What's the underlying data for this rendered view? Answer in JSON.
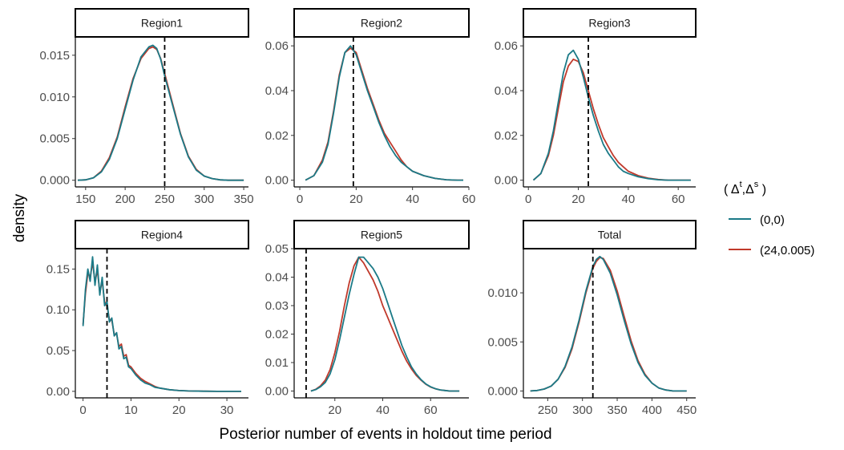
{
  "chart_data": {
    "type": "line",
    "subtype": "faceted-density",
    "xlabel": "Posterior number of events in holdout time period",
    "ylabel": "density",
    "legend": {
      "title_prefix": "( Δ",
      "title_sup1": "t",
      "title_mid": ",Δ",
      "title_sup2": "s",
      "title_suffix": " )",
      "position": "right",
      "entries": [
        {
          "name": "(0,0)",
          "color": "#1b7a87"
        },
        {
          "name": "(24,0.005)",
          "color": "#c0392b"
        }
      ]
    },
    "panels": [
      {
        "name": "Region1",
        "xlim": [
          137,
          356
        ],
        "ylim": [
          -0.0008,
          0.0172
        ],
        "xticks": [
          150,
          200,
          250,
          300,
          350
        ],
        "yticks": [
          0.0,
          0.005,
          0.01,
          0.015
        ],
        "ytick_labels": [
          "0.000",
          "0.005",
          "0.010",
          "0.015"
        ],
        "vline": 250,
        "series": [
          {
            "name": "(0,0)",
            "x": [
              140,
              150,
              160,
              170,
              180,
              190,
              200,
              210,
              220,
              230,
              235,
              240,
              245,
              250,
              260,
              270,
              280,
              290,
              300,
              310,
              320,
              330,
              340,
              350
            ],
            "y": [
              0.0,
              5e-05,
              0.0003,
              0.001,
              0.0025,
              0.005,
              0.0085,
              0.012,
              0.0148,
              0.016,
              0.0162,
              0.0158,
              0.0145,
              0.0125,
              0.009,
              0.0055,
              0.0028,
              0.0012,
              0.0005,
              0.0002,
              5e-05,
              0.0,
              0.0,
              0.0
            ]
          },
          {
            "name": "(24,0.005)",
            "x": [
              140,
              150,
              160,
              170,
              180,
              190,
              200,
              210,
              220,
              230,
              235,
              240,
              245,
              250,
              260,
              270,
              280,
              290,
              300,
              310,
              320,
              330,
              340,
              350
            ],
            "y": [
              0.0,
              5e-05,
              0.0003,
              0.0011,
              0.0027,
              0.0052,
              0.0088,
              0.0122,
              0.0146,
              0.0158,
              0.016,
              0.0157,
              0.0146,
              0.0128,
              0.0092,
              0.0056,
              0.0029,
              0.0013,
              0.0005,
              0.0002,
              5e-05,
              0.0,
              0.0,
              0.0
            ]
          }
        ]
      },
      {
        "name": "Region2",
        "xlim": [
          -2,
          60
        ],
        "ylim": [
          -0.003,
          0.064
        ],
        "xticks": [
          0,
          20,
          40,
          60
        ],
        "yticks": [
          0.0,
          0.02,
          0.04,
          0.06
        ],
        "ytick_labels": [
          "0.00",
          "0.02",
          "0.04",
          "0.06"
        ],
        "vline": 19,
        "series": [
          {
            "name": "(0,0)",
            "x": [
              2,
              5,
              8,
              10,
              12,
              14,
              16,
              18,
              20,
              22,
              24,
              26,
              28,
              30,
              32,
              34,
              36,
              38,
              40,
              44,
              48,
              52,
              56,
              58
            ],
            "y": [
              0.0,
              0.002,
              0.008,
              0.016,
              0.03,
              0.046,
              0.057,
              0.06,
              0.056,
              0.048,
              0.04,
              0.033,
              0.026,
              0.02,
              0.015,
              0.011,
              0.008,
              0.006,
              0.004,
              0.002,
              0.0008,
              0.0002,
              0.0,
              0.0
            ]
          },
          {
            "name": "(24,0.005)",
            "x": [
              2,
              5,
              8,
              10,
              12,
              14,
              16,
              18,
              20,
              22,
              24,
              26,
              28,
              30,
              32,
              34,
              36,
              38,
              40,
              44,
              48,
              52,
              56,
              58
            ],
            "y": [
              0.0,
              0.002,
              0.009,
              0.017,
              0.031,
              0.047,
              0.057,
              0.059,
              0.057,
              0.049,
              0.041,
              0.034,
              0.027,
              0.021,
              0.017,
              0.013,
              0.009,
              0.006,
              0.004,
              0.002,
              0.0008,
              0.0002,
              0.0,
              0.0
            ]
          }
        ]
      },
      {
        "name": "Region3",
        "xlim": [
          -2,
          67
        ],
        "ylim": [
          -0.003,
          0.064
        ],
        "xticks": [
          0,
          20,
          40,
          60
        ],
        "yticks": [
          0.0,
          0.02,
          0.04,
          0.06
        ],
        "ytick_labels": [
          "0.00",
          "0.02",
          "0.04",
          "0.06"
        ],
        "vline": 24,
        "series": [
          {
            "name": "(0,0)",
            "x": [
              2,
              5,
              8,
              10,
              12,
              14,
              16,
              18,
              20,
              22,
              24,
              26,
              28,
              30,
              32,
              34,
              36,
              38,
              40,
              44,
              48,
              52,
              56,
              60,
              65
            ],
            "y": [
              0.0,
              0.003,
              0.012,
              0.022,
              0.035,
              0.048,
              0.056,
              0.058,
              0.054,
              0.046,
              0.037,
              0.029,
              0.022,
              0.016,
              0.012,
              0.009,
              0.006,
              0.004,
              0.003,
              0.0015,
              0.0007,
              0.0002,
              0.0,
              0.0,
              0.0
            ]
          },
          {
            "name": "(24,0.005)",
            "x": [
              2,
              5,
              8,
              10,
              12,
              14,
              16,
              18,
              20,
              22,
              24,
              26,
              28,
              30,
              32,
              34,
              36,
              38,
              40,
              44,
              48,
              52,
              56,
              60,
              65
            ],
            "y": [
              0.0,
              0.003,
              0.011,
              0.02,
              0.032,
              0.044,
              0.051,
              0.054,
              0.053,
              0.048,
              0.04,
              0.032,
              0.025,
              0.019,
              0.015,
              0.011,
              0.008,
              0.006,
              0.004,
              0.002,
              0.0009,
              0.0003,
              0.0,
              0.0,
              0.0
            ]
          }
        ]
      },
      {
        "name": "Region4",
        "xlim": [
          -1.6,
          34.5
        ],
        "ylim": [
          -0.008,
          0.175
        ],
        "xticks": [
          0,
          10,
          20,
          30
        ],
        "yticks": [
          0.0,
          0.05,
          0.1,
          0.15
        ],
        "ytick_labels": [
          "0.00",
          "0.05",
          "0.10",
          "0.15"
        ],
        "vline": 5,
        "series": [
          {
            "name": "(0,0)",
            "x": [
              0,
              0.5,
              1,
              1.5,
              2,
              2.5,
              3,
              3.5,
              4,
              4.5,
              5,
              5.5,
              6,
              6.5,
              7,
              7.5,
              8,
              8.5,
              9,
              9.5,
              10,
              11,
              12,
              13,
              14,
              15,
              16,
              17,
              18,
              20,
              22,
              25,
              28,
              30,
              32,
              33
            ],
            "y": [
              0.08,
              0.125,
              0.15,
              0.135,
              0.165,
              0.13,
              0.155,
              0.118,
              0.14,
              0.105,
              0.11,
              0.085,
              0.09,
              0.068,
              0.072,
              0.052,
              0.055,
              0.04,
              0.042,
              0.03,
              0.028,
              0.02,
              0.014,
              0.01,
              0.008,
              0.005,
              0.004,
              0.003,
              0.002,
              0.001,
              0.0005,
              0.0002,
              0.0,
              0.0,
              0.0,
              0.0
            ]
          },
          {
            "name": "(24,0.005)",
            "x": [
              0,
              0.5,
              1,
              1.5,
              2,
              2.5,
              3,
              3.5,
              4,
              4.5,
              5,
              5.5,
              6,
              6.5,
              7,
              7.5,
              8,
              8.5,
              9,
              9.5,
              10,
              11,
              12,
              13,
              14,
              15,
              16,
              17,
              18,
              20,
              22,
              25,
              28,
              30,
              32,
              33
            ],
            "y": [
              0.082,
              0.12,
              0.145,
              0.14,
              0.158,
              0.135,
              0.148,
              0.122,
              0.135,
              0.11,
              0.105,
              0.088,
              0.087,
              0.07,
              0.07,
              0.055,
              0.058,
              0.043,
              0.045,
              0.032,
              0.03,
              0.022,
              0.016,
              0.012,
              0.009,
              0.006,
              0.004,
              0.003,
              0.002,
              0.001,
              0.0005,
              0.0002,
              0.0,
              0.0,
              0.0,
              0.0
            ]
          }
        ]
      },
      {
        "name": "Region5",
        "xlim": [
          3,
          76
        ],
        "ylim": [
          -0.0024,
          0.05
        ],
        "xticks": [
          20,
          40,
          60
        ],
        "yticks": [
          0.0,
          0.01,
          0.02,
          0.03,
          0.04,
          0.05
        ],
        "ytick_labels": [
          "0.00",
          "0.01",
          "0.02",
          "0.03",
          "0.04",
          "0.05"
        ],
        "vline": 8,
        "series": [
          {
            "name": "(0,0)",
            "x": [
              10,
              12,
              14,
              16,
              18,
              20,
              22,
              24,
              26,
              28,
              30,
              32,
              34,
              36,
              38,
              40,
              42,
              44,
              46,
              48,
              50,
              52,
              54,
              56,
              58,
              60,
              62,
              64,
              66,
              68,
              70,
              72
            ],
            "y": [
              0.0,
              0.0005,
              0.0015,
              0.003,
              0.006,
              0.011,
              0.018,
              0.026,
              0.034,
              0.041,
              0.047,
              0.047,
              0.045,
              0.043,
              0.04,
              0.036,
              0.031,
              0.026,
              0.021,
              0.016,
              0.012,
              0.0085,
              0.006,
              0.004,
              0.0025,
              0.0015,
              0.0008,
              0.0004,
              0.0002,
              0.0,
              0.0,
              0.0
            ]
          },
          {
            "name": "(24,0.005)",
            "x": [
              10,
              12,
              14,
              16,
              18,
              20,
              22,
              24,
              26,
              28,
              30,
              32,
              34,
              36,
              38,
              40,
              42,
              44,
              46,
              48,
              50,
              52,
              54,
              56,
              58,
              60,
              62,
              64,
              66,
              68,
              70,
              72
            ],
            "y": [
              0.0,
              0.0006,
              0.0018,
              0.0038,
              0.0075,
              0.0135,
              0.021,
              0.03,
              0.038,
              0.044,
              0.047,
              0.045,
              0.042,
              0.039,
              0.035,
              0.03,
              0.026,
              0.022,
              0.018,
              0.014,
              0.0105,
              0.0078,
              0.0055,
              0.0038,
              0.0024,
              0.0014,
              0.0008,
              0.0004,
              0.0002,
              0.0,
              0.0,
              0.0
            ]
          }
        ]
      },
      {
        "name": "Total",
        "xlim": [
          215,
          463
        ],
        "ylim": [
          -0.0007,
          0.0145
        ],
        "xticks": [
          250,
          300,
          350,
          400,
          450
        ],
        "yticks": [
          0.0,
          0.005,
          0.01
        ],
        "ytick_labels": [
          "0.000",
          "0.005",
          "0.010"
        ],
        "vline": 315,
        "series": [
          {
            "name": "(0,0)",
            "x": [
              225,
              235,
              245,
              255,
              265,
              275,
              285,
              295,
              305,
              315,
              320,
              325,
              330,
              340,
              350,
              360,
              370,
              380,
              390,
              400,
              410,
              420,
              430,
              440,
              450
            ],
            "y": [
              0.0,
              5e-05,
              0.0002,
              0.0005,
              0.0012,
              0.0025,
              0.0045,
              0.0072,
              0.0102,
              0.0127,
              0.0134,
              0.0137,
              0.0134,
              0.012,
              0.0098,
              0.0072,
              0.0048,
              0.0029,
              0.0016,
              0.0008,
              0.0003,
              0.0001,
              0.0,
              0.0,
              0.0
            ]
          },
          {
            "name": "(24,0.005)",
            "x": [
              225,
              235,
              245,
              255,
              265,
              275,
              285,
              295,
              305,
              315,
              320,
              325,
              330,
              340,
              350,
              360,
              370,
              380,
              390,
              400,
              410,
              420,
              430,
              440,
              450
            ],
            "y": [
              0.0,
              5e-05,
              0.0002,
              0.0005,
              0.0012,
              0.0024,
              0.0043,
              0.007,
              0.01,
              0.0125,
              0.0132,
              0.0136,
              0.0135,
              0.0123,
              0.0102,
              0.0076,
              0.0051,
              0.0031,
              0.0017,
              0.0008,
              0.0003,
              0.0001,
              0.0,
              0.0,
              0.0
            ]
          }
        ]
      }
    ]
  }
}
